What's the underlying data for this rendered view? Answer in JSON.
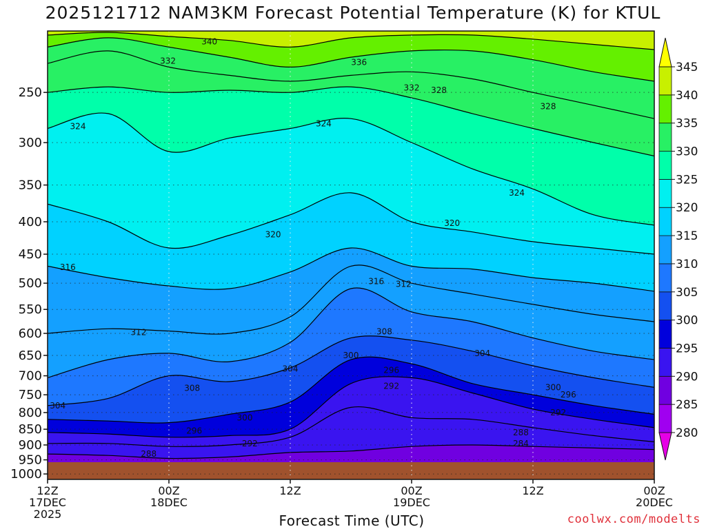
{
  "title": "2025121712 NAM3KM Forecast Potential Temperature (K) for KTUL",
  "xlabel": "Forecast Time (UTC)",
  "credit": "coolwx.com/modelts",
  "colors": {
    "ground": "#a0522d",
    "bands": [
      "#e600e6",
      "#a000f0",
      "#7000e0",
      "#3a14f0",
      "#0000dc",
      "#1450f0",
      "#1e78ff",
      "#14a0ff",
      "#00d2ff",
      "#00f0f0",
      "#00ffaa",
      "#28f064",
      "#64f000",
      "#c8f000",
      "#ffff00"
    ]
  },
  "chart_data": {
    "type": "contour",
    "title": "2025121712 NAM3KM Forecast Potential Temperature (K) for KTUL",
    "xlabel": "Forecast Time (UTC)",
    "ylabel": "",
    "y_scale": "log",
    "y_inverted": true,
    "ylim": [
      1020,
      200
    ],
    "xlim": [
      0,
      60
    ],
    "y_ticks": [
      250,
      300,
      350,
      400,
      450,
      500,
      550,
      600,
      650,
      700,
      750,
      800,
      850,
      900,
      950,
      1000
    ],
    "x_ticks": [
      {
        "hour": 0,
        "lines": [
          "12Z",
          "17DEC",
          "2025"
        ]
      },
      {
        "hour": 12,
        "lines": [
          "00Z",
          "18DEC"
        ]
      },
      {
        "hour": 24,
        "lines": [
          "12Z"
        ]
      },
      {
        "hour": 36,
        "lines": [
          "00Z",
          "19DEC"
        ]
      },
      {
        "hour": 48,
        "lines": [
          "12Z"
        ]
      },
      {
        "hour": 60,
        "lines": [
          "00Z",
          "20DEC"
        ]
      }
    ],
    "colorbar": {
      "levels": [
        280,
        285,
        290,
        295,
        300,
        305,
        310,
        315,
        320,
        325,
        330,
        335,
        340,
        345
      ]
    },
    "surface_pressure": 1005,
    "isentropes": [
      {
        "theta": 288,
        "p": [
          930,
          935,
          945,
          940,
          925,
          920,
          905,
          900,
          905,
          910,
          915
        ]
      },
      {
        "theta": 292,
        "p": [
          895,
          895,
          905,
          900,
          875,
          785,
          815,
          820,
          845,
          870,
          890
        ]
      },
      {
        "theta": 296,
        "p": [
          860,
          865,
          875,
          870,
          850,
          720,
          705,
          745,
          790,
          820,
          845
        ]
      },
      {
        "theta": 300,
        "p": [
          820,
          825,
          830,
          805,
          770,
          660,
          670,
          720,
          750,
          780,
          805
        ]
      },
      {
        "theta": 304,
        "p": [
          780,
          760,
          700,
          715,
          680,
          610,
          615,
          640,
          675,
          705,
          730
        ]
      },
      {
        "theta": 308,
        "p": [
          705,
          660,
          645,
          665,
          620,
          510,
          555,
          575,
          610,
          640,
          660
        ]
      },
      {
        "theta": 312,
        "p": [
          600,
          590,
          595,
          600,
          565,
          470,
          500,
          520,
          540,
          560,
          575
        ]
      },
      {
        "theta": 316,
        "p": [
          470,
          490,
          505,
          510,
          480,
          440,
          470,
          475,
          490,
          500,
          515
        ]
      },
      {
        "theta": 320,
        "p": [
          375,
          400,
          440,
          420,
          390,
          360,
          400,
          415,
          430,
          440,
          450
        ]
      },
      {
        "theta": 324,
        "p": [
          285,
          270,
          310,
          295,
          285,
          275,
          300,
          330,
          355,
          390,
          405
        ]
      },
      {
        "theta": 328,
        "p": [
          250,
          245,
          250,
          248,
          250,
          245,
          255,
          270,
          285,
          300,
          315
        ]
      },
      {
        "theta": 332,
        "p": [
          225,
          215,
          228,
          235,
          240,
          235,
          232,
          238,
          250,
          262,
          275
        ]
      },
      {
        "theta": 336,
        "p": [
          212,
          205,
          212,
          220,
          228,
          220,
          215,
          215,
          222,
          232,
          240
        ]
      },
      {
        "theta": 340,
        "p": [
          203,
          201,
          204,
          207,
          212,
          205,
          203,
          203,
          206,
          210,
          214
        ]
      }
    ],
    "contour_labels": [
      {
        "text": "340",
        "hour": 16,
        "p": 208
      },
      {
        "text": "332",
        "hour": 11.9,
        "p": 223
      },
      {
        "text": "336",
        "hour": 30.8,
        "p": 224
      },
      {
        "text": "332",
        "hour": 36,
        "p": 246
      },
      {
        "text": "328",
        "hour": 38.7,
        "p": 248
      },
      {
        "text": "328",
        "hour": 49.5,
        "p": 263
      },
      {
        "text": "324",
        "hour": 3,
        "p": 283
      },
      {
        "text": "324",
        "hour": 27.3,
        "p": 280
      },
      {
        "text": "324",
        "hour": 46.4,
        "p": 360
      },
      {
        "text": "320",
        "hour": 22.3,
        "p": 419
      },
      {
        "text": "320",
        "hour": 40,
        "p": 402
      },
      {
        "text": "316",
        "hour": 2,
        "p": 472
      },
      {
        "text": "316",
        "hour": 32.5,
        "p": 497
      },
      {
        "text": "312",
        "hour": 35.2,
        "p": 502
      },
      {
        "text": "312",
        "hour": 9,
        "p": 598
      },
      {
        "text": "308",
        "hour": 33.3,
        "p": 596
      },
      {
        "text": "304",
        "hour": 43,
        "p": 645
      },
      {
        "text": "300",
        "hour": 30,
        "p": 650
      },
      {
        "text": "304",
        "hour": 24,
        "p": 683
      },
      {
        "text": "296",
        "hour": 34,
        "p": 686
      },
      {
        "text": "292",
        "hour": 34,
        "p": 727
      },
      {
        "text": "300",
        "hour": 50,
        "p": 730
      },
      {
        "text": "296",
        "hour": 51.5,
        "p": 750
      },
      {
        "text": "292",
        "hour": 50.5,
        "p": 800
      },
      {
        "text": "308",
        "hour": 14.3,
        "p": 732
      },
      {
        "text": "304",
        "hour": 1,
        "p": 780
      },
      {
        "text": "300",
        "hour": 19.5,
        "p": 815
      },
      {
        "text": "296",
        "hour": 14.5,
        "p": 855
      },
      {
        "text": "292",
        "hour": 20,
        "p": 895
      },
      {
        "text": "288",
        "hour": 46.8,
        "p": 860
      },
      {
        "text": "284",
        "hour": 46.8,
        "p": 895
      },
      {
        "text": "288",
        "hour": 10,
        "p": 930
      }
    ]
  }
}
